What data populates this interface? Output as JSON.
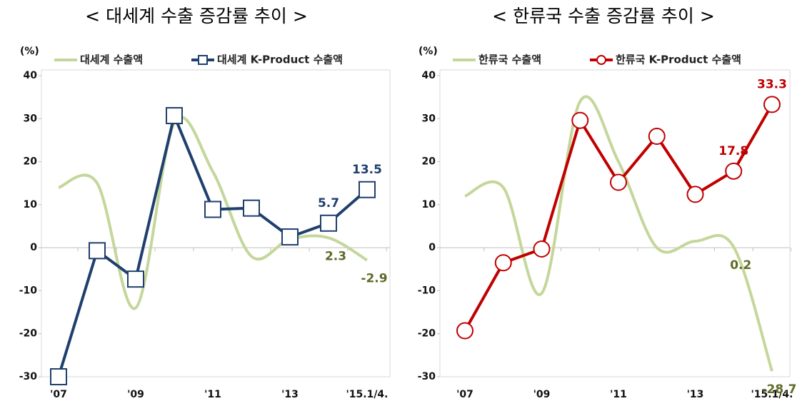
{
  "chart_data": [
    {
      "type": "line",
      "title": "< 대세계 수출 증감률 추이 >",
      "y_label": "(%)",
      "categories": [
        "'07",
        null,
        "'09",
        null,
        "'11",
        null,
        "'13",
        null,
        "'15.1/4."
      ],
      "ylim": [
        -30,
        40
      ],
      "yticks": [
        -30,
        -20,
        -10,
        0,
        10,
        20,
        30,
        40
      ],
      "grid": false,
      "series": [
        {
          "name": "대세계 수출액",
          "color": "#c4d79b",
          "label_color": "#5e6b27",
          "smooth": true,
          "marker": "none",
          "values": [
            14,
            15,
            -14,
            29,
            17.7,
            -2,
            2,
            2.3,
            -2.9
          ],
          "value_labels": [
            null,
            null,
            null,
            null,
            null,
            null,
            null,
            "2.3",
            "-2.9"
          ]
        },
        {
          "name": "대세계 K-Product 수출액",
          "color": "#1f3f6e",
          "label_color": "#1f3f6e",
          "smooth": false,
          "marker": "square",
          "values": [
            -30,
            -0.7,
            -7.3,
            30.7,
            8.9,
            9.2,
            2.5,
            5.7,
            13.5
          ],
          "value_labels": [
            null,
            null,
            null,
            null,
            null,
            null,
            null,
            "5.7",
            "13.5"
          ]
        }
      ]
    },
    {
      "type": "line",
      "title": "< 한류국 수출 증감률 추이 >",
      "y_label": "(%)",
      "categories": [
        "'07",
        null,
        "'09",
        null,
        "'11",
        null,
        "'13",
        null,
        "'15.1/4."
      ],
      "ylim": [
        -30,
        40
      ],
      "yticks": [
        -30,
        -20,
        -10,
        0,
        10,
        20,
        30,
        40
      ],
      "grid": false,
      "series": [
        {
          "name": "한류국 수출액",
          "color": "#c4d79b",
          "label_color": "#5e6b27",
          "smooth": true,
          "marker": "none",
          "values": [
            12,
            14,
            -10.6,
            34,
            20,
            0,
            1.5,
            0.2,
            -28.7
          ],
          "value_labels": [
            null,
            null,
            null,
            null,
            null,
            null,
            null,
            "0.2",
            "-28.7"
          ]
        },
        {
          "name": "한류국 K-Product 수출액",
          "color": "#c00000",
          "label_color": "#c00000",
          "smooth": false,
          "marker": "circle",
          "values": [
            -19.3,
            -3.5,
            -0.3,
            29.6,
            15.2,
            25.9,
            12.4,
            17.8,
            33.3
          ],
          "value_labels": [
            null,
            null,
            null,
            null,
            null,
            null,
            null,
            "17.8",
            "33.3"
          ]
        }
      ]
    }
  ]
}
